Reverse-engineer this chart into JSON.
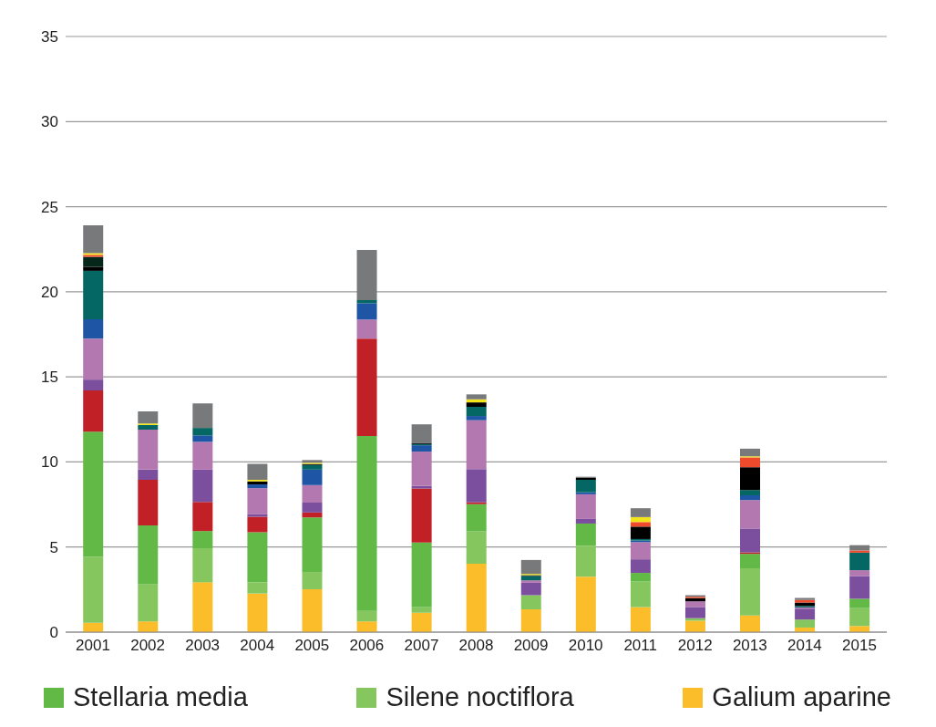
{
  "chart_data": {
    "type": "bar",
    "stacked": true,
    "categories": [
      "2001",
      "2002",
      "2003",
      "2004",
      "2005",
      "2006",
      "2007",
      "2008",
      "2009",
      "2010",
      "2011",
      "2012",
      "2013",
      "2014",
      "2015"
    ],
    "series": [
      {
        "name": "Galium aparine",
        "color": "#fbbd29",
        "values": [
          0.55,
          0.63,
          2.93,
          2.27,
          2.52,
          0.63,
          1.14,
          4.02,
          1.34,
          3.26,
          1.47,
          0.67,
          0.98,
          0.27,
          0.36
        ]
      },
      {
        "name": "Silene noctiflora",
        "color": "#86c65f",
        "values": [
          3.87,
          2.2,
          2.0,
          0.66,
          1.01,
          0.62,
          0.34,
          1.9,
          0.83,
          1.81,
          1.5,
          0.15,
          2.77,
          0.47,
          1.05
        ]
      },
      {
        "name": "Stellaria media",
        "color": "#62b946",
        "values": [
          7.36,
          3.44,
          1.01,
          2.94,
          3.21,
          10.27,
          3.79,
          1.6,
          null,
          1.31,
          0.51,
          null,
          0.85,
          null,
          0.55
        ]
      },
      {
        "color": "#c02026",
        "values": [
          2.42,
          2.68,
          1.71,
          0.91,
          0.29,
          5.73,
          3.17,
          0.11,
          null,
          null,
          null,
          null,
          0.09,
          null,
          null
        ]
      },
      {
        "color": "#7c4f9e",
        "values": [
          0.64,
          0.6,
          1.9,
          0.14,
          0.58,
          null,
          0.15,
          1.95,
          0.73,
          0.27,
          0.8,
          0.66,
          1.4,
          0.64,
          1.34
        ]
      },
      {
        "color": "#b478b0",
        "values": [
          2.41,
          2.35,
          1.63,
          1.54,
          1.03,
          1.12,
          2.02,
          2.87,
          0.14,
          1.45,
          1.01,
          0.33,
          1.67,
          0.07,
          0.34
        ]
      },
      {
        "color": "#1f55a5",
        "values": [
          1.14,
          null,
          0.38,
          0.22,
          0.91,
          0.96,
          0.37,
          0.25,
          null,
          0.12,
          0.09,
          null,
          0.28,
          null,
          null
        ]
      },
      {
        "color": "#056763",
        "values": [
          2.84,
          0.27,
          0.44,
          null,
          0.27,
          0.18,
          0.07,
          0.54,
          0.26,
          0.73,
          0.09,
          null,
          0.31,
          0.09,
          1.03
        ]
      },
      {
        "color": "#000000",
        "values": [
          0.24,
          null,
          null,
          0.18,
          0.06,
          null,
          0.07,
          0.26,
          0.05,
          0.11,
          0.73,
          0.19,
          1.34,
          0.2,
          null
        ]
      },
      {
        "color": "#05281a",
        "values": [
          0.58,
          null,
          null,
          null,
          null,
          null,
          null,
          null,
          null,
          null,
          null,
          null,
          null,
          null,
          null
        ]
      },
      {
        "color": "#ef4a2c",
        "values": [
          0.12,
          null,
          null,
          null,
          null,
          null,
          null,
          null,
          null,
          null,
          0.27,
          0.08,
          0.58,
          0.15,
          0.13
        ]
      },
      {
        "color": "#f3e51c",
        "values": [
          0.1,
          0.09,
          null,
          0.09,
          0.07,
          null,
          null,
          0.18,
          0.07,
          null,
          0.29,
          null,
          0.06,
          null,
          null
        ]
      },
      {
        "color": "#78797b",
        "values": [
          1.63,
          0.71,
          1.44,
          0.94,
          0.16,
          2.95,
          1.09,
          0.29,
          0.82,
          0.07,
          0.52,
          0.09,
          0.45,
          0.12,
          0.31
        ]
      }
    ],
    "ylim": [
      0,
      35
    ],
    "yticks": [
      0,
      5,
      10,
      15,
      20,
      25,
      30,
      35
    ],
    "grid": "y",
    "legend": "bottom"
  }
}
